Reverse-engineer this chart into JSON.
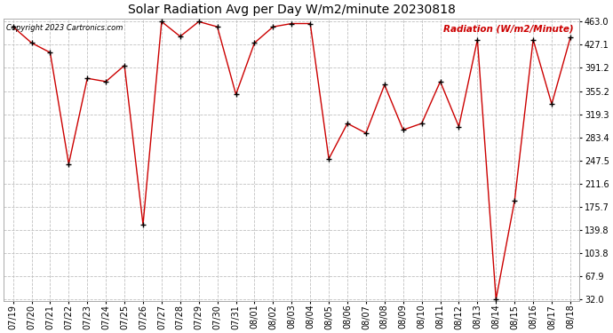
{
  "title": "Solar Radiation Avg per Day W/m2/minute 20230818",
  "copyright_text": "Copyright 2023 Cartronics.com",
  "legend_label": "Radiation (W/m2/Minute)",
  "dates": [
    "07/19",
    "07/20",
    "07/21",
    "07/22",
    "07/23",
    "07/24",
    "07/25",
    "07/26",
    "07/27",
    "07/28",
    "07/29",
    "07/30",
    "07/31",
    "08/01",
    "08/02",
    "08/03",
    "08/04",
    "08/05",
    "08/06",
    "08/07",
    "08/08",
    "08/09",
    "08/10",
    "08/11",
    "08/12",
    "08/13",
    "08/14",
    "08/15",
    "08/16",
    "08/17",
    "08/18"
  ],
  "values": [
    455,
    430,
    415,
    242,
    375,
    370,
    395,
    148,
    463,
    440,
    463,
    455,
    350,
    430,
    455,
    460,
    460,
    250,
    305,
    290,
    365,
    295,
    305,
    370,
    300,
    435,
    32,
    185,
    435,
    335,
    438
  ],
  "ymin": 32.0,
  "ymax": 463.0,
  "yticks": [
    463.0,
    427.1,
    391.2,
    355.2,
    319.3,
    283.4,
    247.5,
    211.6,
    175.7,
    139.8,
    103.8,
    67.9,
    32.0
  ],
  "line_color": "#cc0000",
  "marker_color": "#000000",
  "background_color": "#ffffff",
  "grid_color": "#c0c0c0",
  "title_fontsize": 10,
  "tick_fontsize": 7,
  "legend_color": "#cc0000"
}
